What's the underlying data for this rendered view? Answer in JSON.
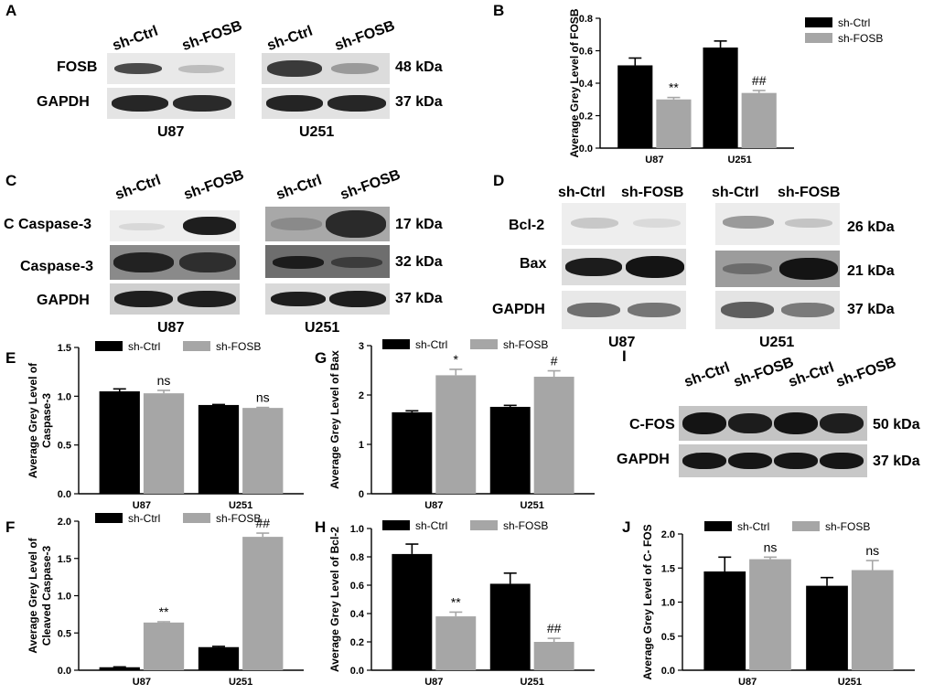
{
  "panel_letters": {
    "A": "A",
    "B": "B",
    "C": "C",
    "D": "D",
    "E": "E",
    "F": "F",
    "G": "G",
    "H": "H",
    "I": "I",
    "J": "J"
  },
  "groups": {
    "ctrl": "sh-Ctrl",
    "fosb": "sh-FOSB"
  },
  "cells": {
    "u87": "U87",
    "u251": "U251"
  },
  "panel_a": {
    "rows": [
      {
        "label": "FOSB",
        "kda": "48 kDa"
      },
      {
        "label": "GAPDH",
        "kda": "37 kDa"
      }
    ]
  },
  "panel_c": {
    "rows": [
      {
        "label": "C Caspase-3",
        "kda": "17 kDa"
      },
      {
        "label": "Caspase-3",
        "kda": "32 kDa"
      },
      {
        "label": "GAPDH",
        "kda": "37 kDa"
      }
    ]
  },
  "panel_d": {
    "rows": [
      {
        "label": "Bcl-2",
        "kda": "26 kDa"
      },
      {
        "label": "Bax",
        "kda": "21 kDa"
      },
      {
        "label": "GAPDH",
        "kda": "37 kDa"
      }
    ]
  },
  "panel_i": {
    "rows": [
      {
        "label": "C-FOS",
        "kda": "50 kDa"
      },
      {
        "label": "GAPDH",
        "kda": "37 kDa"
      }
    ]
  },
  "colors": {
    "ctrl": "#000000",
    "fosb": "#a6a6a6"
  },
  "chart_data": [
    {
      "id": "B",
      "type": "bar",
      "ylabel": "Average Grey Level of FOSB",
      "categories": [
        "U87",
        "U251"
      ],
      "ylim": [
        0,
        0.8
      ],
      "yticks": [
        "0.0",
        "0.2",
        "0.4",
        "0.6",
        "0.8"
      ],
      "legend": "right",
      "series": [
        {
          "name": "sh-Ctrl",
          "values": [
            0.51,
            0.62
          ],
          "errors": [
            0.045,
            0.04
          ]
        },
        {
          "name": "sh-FOSB",
          "values": [
            0.3,
            0.34
          ],
          "errors": [
            0.012,
            0.015
          ]
        }
      ],
      "annotations": [
        "**",
        "##"
      ]
    },
    {
      "id": "E",
      "type": "bar",
      "ylabel": "Average Grey Level of Caspase-3",
      "categories": [
        "U87",
        "U251"
      ],
      "ylim": [
        0,
        1.5
      ],
      "yticks": [
        "0.0",
        "0.5",
        "1.0",
        "1.5"
      ],
      "legend": "top",
      "series": [
        {
          "name": "sh-Ctrl",
          "values": [
            1.05,
            0.91
          ],
          "errors": [
            0.025,
            0.005
          ]
        },
        {
          "name": "sh-FOSB",
          "values": [
            1.03,
            0.88
          ],
          "errors": [
            0.03,
            0.005
          ]
        }
      ],
      "annotations": [
        "ns",
        "ns"
      ]
    },
    {
      "id": "G",
      "type": "bar",
      "ylabel": "Average Grey Level of Bax",
      "categories": [
        "U87",
        "U251"
      ],
      "ylim": [
        0,
        3
      ],
      "yticks": [
        "0",
        "1",
        "2",
        "3"
      ],
      "legend": "top",
      "series": [
        {
          "name": "sh-Ctrl",
          "values": [
            1.65,
            1.76
          ],
          "errors": [
            0.03,
            0.03
          ]
        },
        {
          "name": "sh-FOSB",
          "values": [
            2.4,
            2.37
          ],
          "errors": [
            0.12,
            0.12
          ]
        }
      ],
      "annotations": [
        "*",
        "#"
      ]
    },
    {
      "id": "F",
      "type": "bar",
      "ylabel": "Average Grey Level of Cleaved Caspase-3",
      "categories": [
        "U87",
        "U251"
      ],
      "ylim": [
        0,
        2.0
      ],
      "yticks": [
        "0.0",
        "0.5",
        "1.0",
        "1.5",
        "2.0"
      ],
      "legend": "top",
      "series": [
        {
          "name": "sh-Ctrl",
          "values": [
            0.04,
            0.31
          ],
          "errors": [
            0.005,
            0.01
          ]
        },
        {
          "name": "sh-FOSB",
          "values": [
            0.64,
            1.79
          ],
          "errors": [
            0.01,
            0.05
          ]
        }
      ],
      "annotations": [
        "**",
        "##"
      ]
    },
    {
      "id": "H",
      "type": "bar",
      "ylabel": "Average Grey Level of Bcl-2",
      "categories": [
        "U87",
        "U251"
      ],
      "ylim": [
        0,
        1.0
      ],
      "yticks": [
        "0.0",
        "0.2",
        "0.4",
        "0.6",
        "0.8",
        "1.0"
      ],
      "legend": "top",
      "series": [
        {
          "name": "sh-Ctrl",
          "values": [
            0.82,
            0.61
          ],
          "errors": [
            0.07,
            0.075
          ]
        },
        {
          "name": "sh-FOSB",
          "values": [
            0.38,
            0.2
          ],
          "errors": [
            0.03,
            0.025
          ]
        }
      ],
      "annotations": [
        "**",
        "##"
      ]
    },
    {
      "id": "J",
      "type": "bar",
      "ylabel": "Average Grey Level of C- FOS",
      "categories": [
        "U87",
        "U251"
      ],
      "ylim": [
        0,
        2.0
      ],
      "yticks": [
        "0.0",
        "0.5",
        "1.0",
        "1.5",
        "2.0"
      ],
      "legend": "top",
      "series": [
        {
          "name": "sh-Ctrl",
          "values": [
            1.45,
            1.24
          ],
          "errors": [
            0.21,
            0.12
          ]
        },
        {
          "name": "sh-FOSB",
          "values": [
            1.63,
            1.47
          ],
          "errors": [
            0.03,
            0.14
          ]
        }
      ],
      "annotations": [
        "ns",
        "ns"
      ]
    }
  ]
}
